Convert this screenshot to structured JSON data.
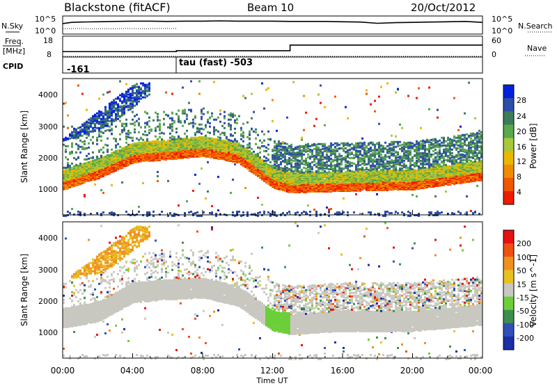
{
  "header": {
    "station": "Blackstone (fitACF)",
    "beam": "Beam 10",
    "date": "20/Oct/2012"
  },
  "noise_panel": {
    "left_label": "N.Sky",
    "right_label": "N.Search",
    "left_ticks": [
      "10^5",
      "10^0"
    ],
    "right_ticks": [
      "10^5",
      "10^0"
    ]
  },
  "freq_panel": {
    "left_label_line1": "Freq.",
    "left_label_line2": "[MHz]",
    "left_ticks": [
      "18",
      "8"
    ],
    "right_label": "Nave",
    "right_ticks": [
      "60",
      "0"
    ]
  },
  "cpid_panel": {
    "label": "CPID",
    "segments": [
      {
        "text": "-161"
      },
      {
        "text": "tau (fast) -503"
      }
    ]
  },
  "x_axis": {
    "label": "Time UT",
    "ticks": [
      "00:00",
      "04:00",
      "08:00",
      "12:00",
      "16:00",
      "20:00",
      "00:00"
    ]
  },
  "power_panel": {
    "ylabel": "Slant Range [km]",
    "yticks": [
      "4000",
      "3000",
      "2000",
      "1000"
    ],
    "colorbar_label": "Power [dB]",
    "colorbar_ticks": [
      "28",
      "24",
      "20",
      "16",
      "12",
      "8",
      "4"
    ],
    "colors": [
      "#0022dd",
      "#2c4ea8",
      "#3f7a5a",
      "#58a84c",
      "#a6c83a",
      "#e8b800",
      "#f08c00",
      "#f05800",
      "#ee1c00"
    ]
  },
  "velocity_panel": {
    "ylabel": "Slant Range [km]",
    "yticks": [
      "4000",
      "3000",
      "2000",
      "1000"
    ],
    "colorbar_label": "Velocity [m s^-1]",
    "colorbar_ticks": [
      "200",
      "100",
      "50",
      "15",
      "-15",
      "-50",
      "-100",
      "-200"
    ],
    "colors": [
      "#1a2ea6",
      "#3050b8",
      "#3e8f4e",
      "#6ccf3a",
      "#c8c8c0",
      "#e8c020",
      "#f09020",
      "#f05010",
      "#e81010"
    ]
  },
  "chart_data": [
    {
      "type": "line",
      "name": "noise",
      "x_hours": [
        0,
        0.5,
        1,
        2,
        3,
        4,
        5,
        6,
        7,
        8,
        9,
        10,
        11,
        12,
        13,
        14,
        15,
        16,
        17,
        18,
        19,
        20,
        21,
        22,
        23,
        24
      ],
      "n_sky_log10": [
        3.2,
        3.6,
        3.7,
        3.8,
        3.9,
        4.0,
        4.0,
        3.9,
        4.0,
        4.0,
        4.1,
        4.0,
        4.0,
        4.0,
        3.9,
        3.9,
        3.9,
        3.8,
        3.7,
        3.3,
        3.5,
        3.6,
        3.7,
        3.8,
        3.9,
        3.6
      ],
      "n_search_log10": [
        1.5,
        1.6,
        1.5,
        1.5,
        1.6,
        1.5,
        1.6,
        1.6
      ],
      "n_search_end_hour": 6.5,
      "ylim": [
        "10^0",
        "10^5"
      ]
    },
    {
      "type": "line",
      "name": "freq_nave",
      "freq_mhz": [
        {
          "from": 0,
          "to": 6.5,
          "value": 10.5
        },
        {
          "from": 6.5,
          "to": 13,
          "value": 11
        },
        {
          "from": 13,
          "to": 24,
          "value": 14
        }
      ],
      "freq_ylim": [
        8,
        18
      ],
      "nave": [
        {
          "from": 0,
          "to": 24,
          "value": 0
        }
      ],
      "nave_ylim": [
        0,
        60
      ]
    },
    {
      "type": "heatmap",
      "name": "power",
      "x_range_hours": [
        0,
        24
      ],
      "y_range_km": [
        200,
        4500
      ],
      "clim_db": [
        0,
        30
      ],
      "ground_scatter_edge_km": [
        [
          0,
          1150
        ],
        [
          2,
          1500
        ],
        [
          4,
          2000
        ],
        [
          6,
          2100
        ],
        [
          8,
          2200
        ],
        [
          10,
          2000
        ],
        [
          12,
          1200
        ],
        [
          13,
          1050
        ],
        [
          16,
          1100
        ],
        [
          20,
          1150
        ],
        [
          24,
          1450
        ]
      ]
    },
    {
      "type": "heatmap",
      "name": "velocity",
      "x_range_hours": [
        0,
        24
      ],
      "y_range_km": [
        200,
        4500
      ],
      "clim_ms": [
        -200,
        200
      ],
      "ground_scatter_band_km": [
        [
          0,
          1300
        ],
        [
          2,
          1500
        ],
        [
          4,
          2100
        ],
        [
          6,
          2200
        ],
        [
          8,
          2250
        ],
        [
          10,
          2000
        ],
        [
          12,
          1200
        ],
        [
          13,
          1100
        ],
        [
          16,
          1200
        ],
        [
          20,
          1200
        ],
        [
          24,
          1400
        ]
      ]
    }
  ]
}
